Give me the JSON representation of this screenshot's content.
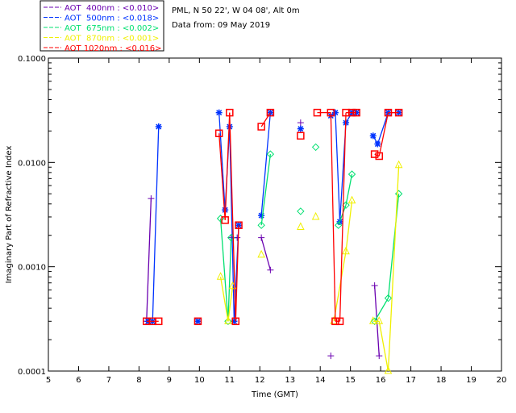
{
  "header": {
    "site": "PML, N 50 22', W 04 08', Alt 0m",
    "date": "Data from: 09 May 2019"
  },
  "chart_data": {
    "type": "scatter",
    "xlabel": "Time (GMT)",
    "ylabel": "Imaginary Part of Refractive Index",
    "xlim": [
      5,
      20
    ],
    "ylim": [
      0.0001,
      0.1
    ],
    "yscale": "log",
    "xticks": [
      "5",
      "6",
      "7",
      "8",
      "9",
      "10",
      "11",
      "12",
      "13",
      "14",
      "15",
      "16",
      "17",
      "18",
      "19",
      "20"
    ],
    "yticks": [
      {
        "v": 0.1,
        "label": "0.1000"
      },
      {
        "v": 0.01,
        "label": "0.0100"
      },
      {
        "v": 0.001,
        "label": "0.0010"
      },
      {
        "v": 0.0001,
        "label": "0.0001"
      }
    ],
    "legend_position": "top-left-outside",
    "series": [
      {
        "name": "AOT  400nm : <0.010>",
        "color": "#6a00b0",
        "marker": "plus",
        "x": [
          8.25,
          8.4,
          11.05,
          11.25,
          12.05,
          12.35,
          13.35,
          14.35,
          15.1,
          15.8,
          15.95
        ],
        "y": [
          0.0003,
          0.0045,
          0.0019,
          0.0019,
          0.0019,
          0.00093,
          0.024,
          0.00014,
          0.03,
          0.00066,
          0.00014
        ]
      },
      {
        "name": "AOT  500nm : <0.018>",
        "color": "#0033ff",
        "marker": "star",
        "x": [
          8.3,
          8.45,
          8.65,
          9.95,
          10.65,
          10.85,
          11.0,
          11.15,
          11.3,
          12.05,
          12.35,
          13.35,
          14.35,
          14.5,
          14.65,
          14.85,
          15.05,
          15.2,
          15.75,
          15.9,
          16.25,
          16.6
        ],
        "y": [
          0.0003,
          0.0003,
          0.022,
          0.0003,
          0.03,
          0.0035,
          0.022,
          0.0003,
          0.0025,
          0.0031,
          0.03,
          0.021,
          0.028,
          0.03,
          0.0027,
          0.024,
          0.03,
          0.03,
          0.018,
          0.015,
          0.03,
          0.03
        ]
      },
      {
        "name": "AOT  675nm : <0.002>",
        "color": "#00e070",
        "marker": "diamond",
        "x": [
          10.7,
          10.95,
          11.05,
          12.05,
          12.35,
          13.35,
          13.85,
          14.6,
          14.85,
          15.05,
          15.8,
          16.25,
          16.6
        ],
        "y": [
          0.0029,
          0.0003,
          0.0019,
          0.0025,
          0.012,
          0.0034,
          0.014,
          0.0025,
          0.0039,
          0.0077,
          0.0003,
          0.0005,
          0.005
        ]
      },
      {
        "name": "AOT  870nm : <0.001>",
        "color": "#f0f000",
        "marker": "triangle",
        "x": [
          10.7,
          10.95,
          11.1,
          12.05,
          13.35,
          13.85,
          14.45,
          14.85,
          15.05,
          15.75,
          15.95,
          16.25,
          16.6
        ],
        "y": [
          0.0008,
          0.0003,
          0.00065,
          0.0013,
          0.0024,
          0.003,
          0.0003,
          0.0014,
          0.0043,
          0.0003,
          0.0003,
          0.0001,
          0.0094
        ]
      },
      {
        "name": "AOT 1020nm : <0.016>",
        "color": "#ff0000",
        "marker": "square",
        "x": [
          8.25,
          8.45,
          8.65,
          9.95,
          10.65,
          10.85,
          11.0,
          11.2,
          11.3,
          12.05,
          12.35,
          13.35,
          13.9,
          14.35,
          14.5,
          14.65,
          14.85,
          15.05,
          15.2,
          15.8,
          15.95,
          16.25,
          16.6
        ],
        "y": [
          0.0003,
          0.0003,
          0.0003,
          0.0003,
          0.019,
          0.0028,
          0.03,
          0.0003,
          0.0025,
          0.022,
          0.03,
          0.018,
          0.03,
          0.03,
          0.0003,
          0.0003,
          0.03,
          0.03,
          0.03,
          0.012,
          0.0115,
          0.03,
          0.03
        ]
      }
    ]
  }
}
